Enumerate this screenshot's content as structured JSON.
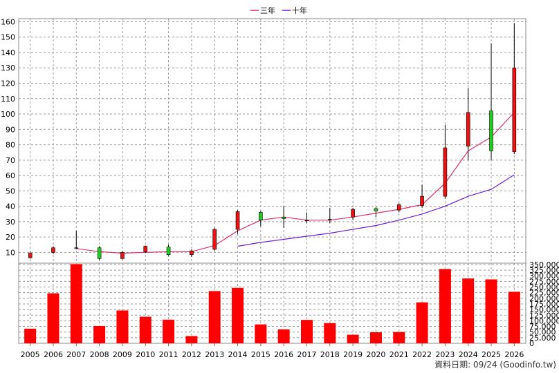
{
  "legend": {
    "items": [
      {
        "name": "三年",
        "color": "#e0306a"
      },
      {
        "name": "十年",
        "color": "#6a1fd0"
      }
    ]
  },
  "source_note": "資料日期: 09/24  (Goodinfo.tw)",
  "chart_data": {
    "type": "candlestick+bar",
    "categories": [
      "2005",
      "2006",
      "2007",
      "2008",
      "2009",
      "2010",
      "2011",
      "2012",
      "2013",
      "2014",
      "2015",
      "2016",
      "2017",
      "2018",
      "2019",
      "2020",
      "2021",
      "2022",
      "2023",
      "2024",
      "2025",
      "2026"
    ],
    "price": {
      "y_ticks": [
        10,
        20,
        30,
        40,
        50,
        60,
        70,
        80,
        90,
        100,
        110,
        120,
        130,
        140,
        150,
        160
      ],
      "ylim": [
        3,
        162
      ],
      "candles": [
        {
          "open": 9.5,
          "high": 10.5,
          "low": 6,
          "close": 6.5
        },
        {
          "open": 13,
          "high": 14,
          "low": 9,
          "close": 10
        },
        {
          "open": 13,
          "high": 24,
          "low": 12,
          "close": 13
        },
        {
          "open": 6,
          "high": 14,
          "low": 5,
          "close": 13
        },
        {
          "open": 10,
          "high": 11,
          "low": 5.5,
          "close": 6
        },
        {
          "open": 14,
          "high": 14.5,
          "low": 9.5,
          "close": 10.5
        },
        {
          "open": 8.5,
          "high": 15,
          "low": 8,
          "close": 13.5
        },
        {
          "open": 11,
          "high": 12,
          "low": 7,
          "close": 8.5
        },
        {
          "open": 25,
          "high": 26,
          "low": 11,
          "close": 12
        },
        {
          "open": 36.5,
          "high": 37.5,
          "low": 22,
          "close": 25
        },
        {
          "open": 31,
          "high": 37,
          "low": 27,
          "close": 36
        },
        {
          "open": 32,
          "high": 40,
          "low": 26,
          "close": 33
        },
        {
          "open": 31,
          "high": 36,
          "low": 29,
          "close": 30.5
        },
        {
          "open": 31.5,
          "high": 39,
          "low": 29,
          "close": 31
        },
        {
          "open": 38,
          "high": 39,
          "low": 31,
          "close": 33
        },
        {
          "open": 37,
          "high": 39.5,
          "low": 33,
          "close": 38.5
        },
        {
          "open": 41,
          "high": 42,
          "low": 36,
          "close": 37.5
        },
        {
          "open": 46.5,
          "high": 54,
          "low": 39,
          "close": 40.5
        },
        {
          "open": 78,
          "high": 93,
          "low": 45,
          "close": 46.5
        },
        {
          "open": 101,
          "high": 117,
          "low": 70,
          "close": 79
        },
        {
          "open": 76,
          "high": 146,
          "low": 70,
          "close": 102
        },
        {
          "open": 130,
          "high": 159,
          "low": 74,
          "close": 75.5
        }
      ],
      "up_color": "#22cc22",
      "down_color": "#ee1111",
      "series": [
        {
          "name": "三年",
          "color": "#e0306a",
          "values": [
            null,
            null,
            12.5,
            10.5,
            9.5,
            10,
            10.5,
            10.5,
            14.5,
            24,
            31,
            33,
            31,
            31,
            33,
            35.5,
            38,
            41,
            55,
            76,
            85,
            101
          ]
        },
        {
          "name": "十年",
          "color": "#6a1fd0",
          "values": [
            null,
            null,
            null,
            null,
            null,
            null,
            null,
            null,
            null,
            14,
            16.5,
            18.5,
            20.5,
            22.5,
            25,
            27.5,
            31,
            35,
            40,
            46.5,
            51,
            60.5
          ]
        }
      ]
    },
    "volume": {
      "color": "#ff0000",
      "y_ticks": [
        0,
        25000,
        50000,
        75000,
        100000,
        125000,
        150000,
        175000,
        200000,
        225000,
        250000,
        275000,
        300000,
        325000,
        350000
      ],
      "y_tick_labels": [
        "0",
        "25,000",
        "50,000",
        "75,000",
        "100,000",
        "125,000",
        "150,000",
        "175,000",
        "200,000",
        "225,000",
        "250,000",
        "275,000",
        "300,000",
        "325,000",
        "350,000"
      ],
      "ylim": [
        0,
        356000
      ],
      "values": [
        65000,
        222000,
        352000,
        77000,
        146000,
        118000,
        105000,
        32000,
        232000,
        246000,
        84000,
        62000,
        104000,
        90000,
        38000,
        49000,
        50000,
        182000,
        330000,
        288000,
        284000,
        229000
      ]
    }
  }
}
